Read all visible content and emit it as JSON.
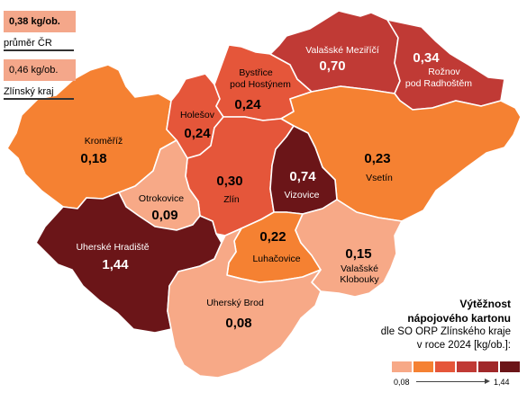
{
  "reference": {
    "cr": {
      "value": "0,38 kg/ob.",
      "label": "průměr ČR",
      "color": "#f4a78a"
    },
    "kraj": {
      "value": "0,46 kg/ob.",
      "label": "Zlínský kraj",
      "color": "#f4a78a"
    }
  },
  "legend": {
    "title_line1": "Výtěžnost",
    "title_line2": "nápojového kartonu",
    "subtitle_line1": "dle SO ORP Zlínského kraje",
    "subtitle_line2": "v roce 2024 [kg/ob.]:",
    "min_label": "0,08",
    "max_label": "1,44",
    "colors": [
      "#f7a987",
      "#f58132",
      "#e5563a",
      "#c03a35",
      "#a0282a",
      "#6b1518"
    ]
  },
  "regions": [
    {
      "id": "kromeriz",
      "name": "Kroměříž",
      "value": "0,18",
      "color": "#f58132",
      "text": "dark"
    },
    {
      "id": "holesov",
      "name": "Holešov",
      "value": "0,24",
      "color": "#e5563a",
      "text": "dark"
    },
    {
      "id": "bystrice",
      "name_lines": [
        "Bystřice",
        "pod Hostýnem"
      ],
      "value": "0,24",
      "color": "#e5563a",
      "text": "dark"
    },
    {
      "id": "valmez",
      "name": "Valašské Meziříčí",
      "value": "0,70",
      "color": "#c03a35",
      "text": "light"
    },
    {
      "id": "roznov",
      "name_lines": [
        "Rožnov",
        "pod Radhoštěm"
      ],
      "value": "0,34",
      "color": "#c03a35",
      "text": "light"
    },
    {
      "id": "vsetin",
      "name": "Vsetín",
      "value": "0,23",
      "color": "#f58132",
      "text": "dark"
    },
    {
      "id": "zlin",
      "name": "Zlín",
      "value": "0,30",
      "color": "#e5563a",
      "text": "dark"
    },
    {
      "id": "vizovice",
      "name": "Vizovice",
      "value": "0,74",
      "color": "#6b1518",
      "text": "light"
    },
    {
      "id": "otrokovice",
      "name": "Otrokovice",
      "value": "0,09",
      "color": "#f7a987",
      "text": "dark"
    },
    {
      "id": "uh",
      "name": "Uherské Hradiště",
      "value": "1,44",
      "color": "#6b1518",
      "text": "light"
    },
    {
      "id": "luhacovice",
      "name": "Luhačovice",
      "value": "0,22",
      "color": "#f58132",
      "text": "dark"
    },
    {
      "id": "klobouky",
      "name_lines": [
        "Valašské",
        "Klobouky"
      ],
      "value": "0,15",
      "color": "#f7a987",
      "text": "dark"
    },
    {
      "id": "ub",
      "name": "Uherský Brod",
      "value": "0,08",
      "color": "#f7a987",
      "text": "dark"
    }
  ]
}
